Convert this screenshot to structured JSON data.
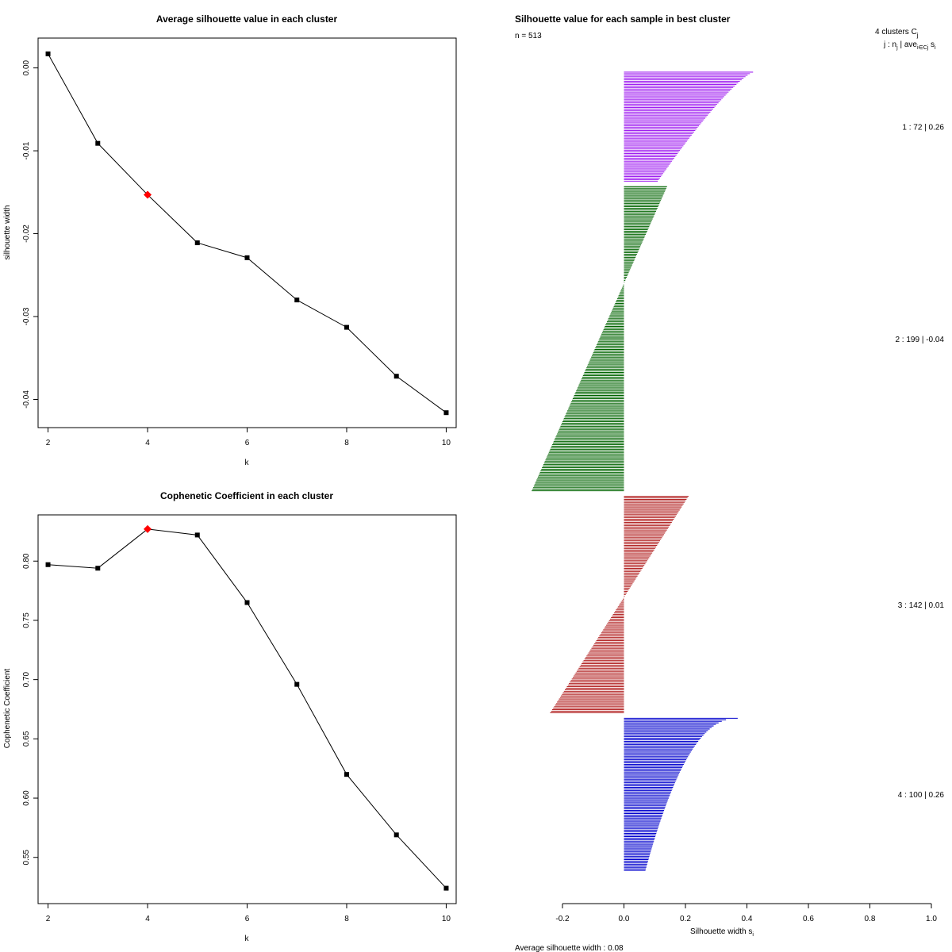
{
  "colors": {
    "line": "#000000",
    "best_marker": "#ff0000",
    "c1": "#a020f0",
    "c2": "#006400",
    "c3": "#b22222",
    "c4": "#0000cd"
  },
  "chart_data": [
    {
      "type": "line",
      "title": "Average silhouette value in each cluster",
      "xlabel": "k",
      "ylabel": "silhouette width",
      "x": [
        2,
        3,
        4,
        5,
        6,
        7,
        8,
        9,
        10
      ],
      "y": [
        0.0017,
        -0.0091,
        -0.0153,
        -0.0211,
        -0.0229,
        -0.028,
        -0.0313,
        -0.0372,
        -0.0416
      ],
      "best_k": 4,
      "xticks": [
        2,
        4,
        6,
        8,
        10
      ],
      "xtick_labels": [
        "2",
        "4",
        "6",
        "8",
        "10"
      ],
      "yticks": [
        0.0,
        -0.01,
        -0.02,
        -0.03,
        -0.04
      ],
      "ytick_labels": [
        "0.00",
        "-0.01",
        "-0.02",
        "-0.03",
        "-0.04"
      ],
      "xlim": [
        1.8,
        10.2
      ],
      "ylim": [
        -0.0434,
        0.0036
      ]
    },
    {
      "type": "line",
      "title": "Cophenetic Coefficient in each cluster",
      "xlabel": "k",
      "ylabel": "Cophenetic Coefficient",
      "x": [
        2,
        3,
        4,
        5,
        6,
        7,
        8,
        9,
        10
      ],
      "y": [
        0.797,
        0.794,
        0.827,
        0.822,
        0.765,
        0.696,
        0.62,
        0.569,
        0.524
      ],
      "best_k": 4,
      "xticks": [
        2,
        4,
        6,
        8,
        10
      ],
      "xtick_labels": [
        "2",
        "4",
        "6",
        "8",
        "10"
      ],
      "yticks": [
        0.55,
        0.6,
        0.65,
        0.7,
        0.75,
        0.8
      ],
      "ytick_labels": [
        "0.55",
        "0.60",
        "0.65",
        "0.70",
        "0.75",
        "0.80"
      ],
      "xlim": [
        1.8,
        10.2
      ],
      "ylim": [
        0.511,
        0.839
      ]
    },
    {
      "type": "bar",
      "orientation": "horizontal",
      "title": "Silhouette value for each sample in best cluster",
      "n_label": "n = 513",
      "xlabel": "Silhouette width s",
      "xlabel_sub": "i",
      "xlim": [
        -0.2,
        1.0
      ],
      "xticks": [
        -0.2,
        0.0,
        0.2,
        0.4,
        0.6,
        0.8,
        1.0
      ],
      "xtick_labels": [
        "-0.2",
        "0.0",
        "0.2",
        "0.4",
        "0.6",
        "0.8",
        "1.0"
      ],
      "legend_title": "4  clusters  C",
      "legend_title_sub": "j",
      "legend_header": "j :  n",
      "legend_header_rest": " | ave",
      "legend_header_sub": "i∈Cj",
      "legend_header_end": " s",
      "legend_header_end_sub": "i",
      "footer": "Average silhouette width :  0.08",
      "clusters": [
        {
          "id": 1,
          "n": 72,
          "avg": 0.26,
          "label": "1 :   72  |  0.26",
          "max": 0.42,
          "min": 0.11,
          "shape": 0.8
        },
        {
          "id": 2,
          "n": 199,
          "avg": -0.04,
          "label": "2 :   199  |  -0.04",
          "max": 0.14,
          "min": -0.3,
          "shape": 1.0
        },
        {
          "id": 3,
          "n": 142,
          "avg": 0.01,
          "label": "3 :   142  |  0.01",
          "max": 0.21,
          "min": -0.24,
          "shape": 1.0
        },
        {
          "id": 4,
          "n": 100,
          "avg": 0.26,
          "label": "4 :   100  |  0.26",
          "max": 0.37,
          "min": 0.07,
          "shape": 0.45
        }
      ]
    }
  ]
}
